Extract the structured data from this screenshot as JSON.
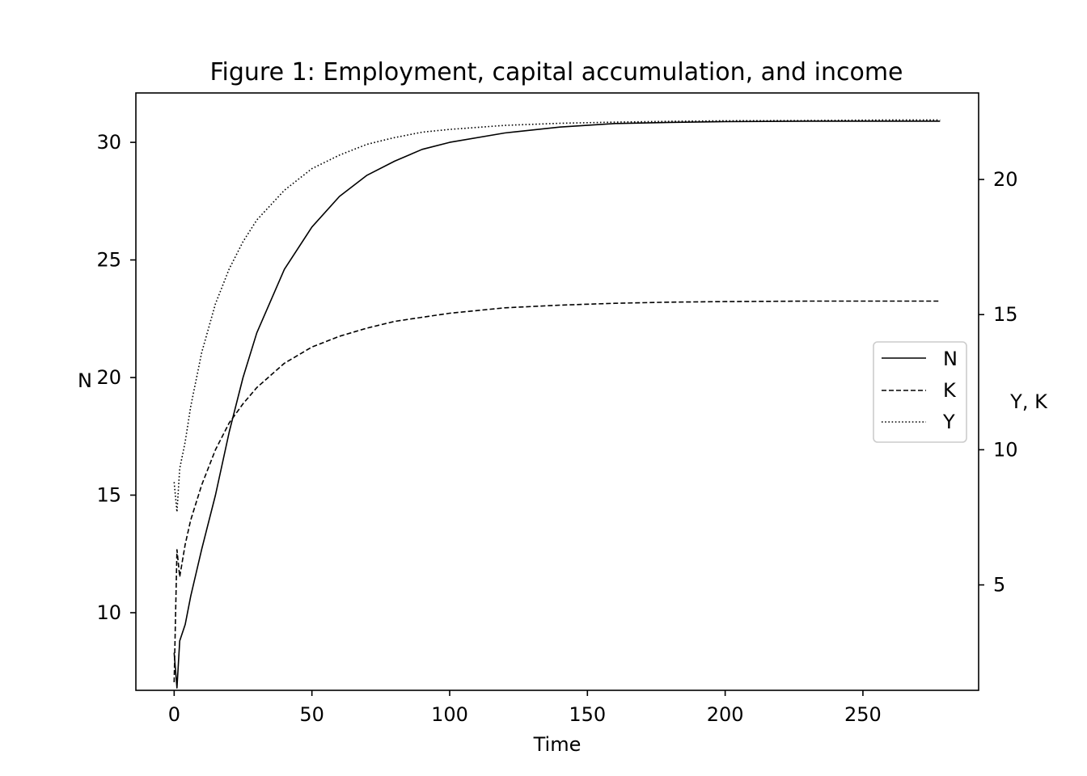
{
  "chart_data": {
    "type": "line",
    "title": "Figure 1: Employment, capital accumulation, and income",
    "xlabel": "Time",
    "ylabel_left": "N",
    "ylabel_right": "Y, K",
    "xlim": [
      -13.9,
      292
    ],
    "ylim_left": [
      6.7,
      32.1
    ],
    "ylim_right": [
      1.1,
      23.2
    ],
    "x_ticks": [
      0,
      50,
      100,
      150,
      200,
      250
    ],
    "y_ticks_left": [
      10,
      15,
      20,
      25,
      30
    ],
    "y_ticks_right": [
      5,
      10,
      15,
      20
    ],
    "grid": false,
    "legend": {
      "position": "center-right",
      "entries": [
        "N",
        "K",
        "Y"
      ]
    },
    "series": [
      {
        "name": "N",
        "axis": "left",
        "style": "solid",
        "x": [
          0,
          1,
          2,
          4,
          6,
          8,
          10,
          15,
          20,
          25,
          30,
          40,
          50,
          60,
          70,
          80,
          90,
          100,
          120,
          140,
          160,
          180,
          200,
          230,
          260,
          278
        ],
        "y": [
          8.3,
          6.8,
          8.8,
          9.5,
          10.7,
          11.7,
          12.7,
          15.0,
          17.7,
          20.0,
          21.9,
          24.6,
          26.4,
          27.7,
          28.6,
          29.2,
          29.7,
          30.0,
          30.4,
          30.65,
          30.8,
          30.85,
          30.88,
          30.9,
          30.9,
          30.9
        ]
      },
      {
        "name": "K",
        "axis": "right",
        "style": "dashed",
        "x": [
          0,
          1,
          2,
          3,
          4,
          6,
          10,
          15,
          20,
          25,
          30,
          40,
          50,
          60,
          70,
          80,
          90,
          100,
          120,
          140,
          160,
          180,
          200,
          230,
          260,
          278
        ],
        "y": [
          1.4,
          6.3,
          5.3,
          5.9,
          6.5,
          7.4,
          8.7,
          10.0,
          11.0,
          11.7,
          12.3,
          13.2,
          13.8,
          14.2,
          14.5,
          14.75,
          14.9,
          15.05,
          15.25,
          15.35,
          15.42,
          15.46,
          15.48,
          15.5,
          15.5,
          15.5
        ]
      },
      {
        "name": "Y",
        "axis": "right",
        "style": "dotted",
        "x": [
          0,
          1,
          2,
          3,
          4,
          6,
          8,
          10,
          15,
          20,
          25,
          30,
          40,
          50,
          60,
          70,
          80,
          90,
          100,
          120,
          140,
          160,
          180,
          200,
          230,
          260,
          278
        ],
        "y": [
          8.8,
          7.7,
          9.3,
          9.8,
          10.3,
          11.6,
          12.6,
          13.6,
          15.4,
          16.7,
          17.7,
          18.5,
          19.6,
          20.4,
          20.9,
          21.3,
          21.55,
          21.75,
          21.85,
          22.0,
          22.08,
          22.12,
          22.15,
          22.17,
          22.18,
          22.2,
          22.2
        ]
      }
    ]
  }
}
